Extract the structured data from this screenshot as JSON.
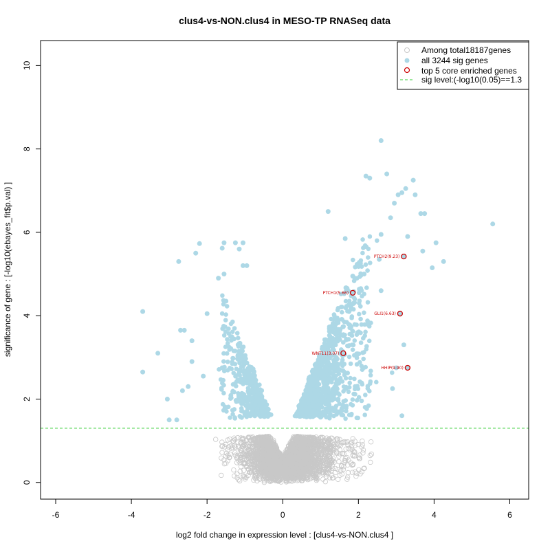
{
  "chart_data": {
    "type": "scatter",
    "title": "clus4-vs-NON.clus4 in MESO-TP RNASeq data",
    "xlabel": "log2 fold change in expression level : [clus4-vs-NON.clus4 ]",
    "ylabel": "significance of gene : [-log10(ebayes_fit$p.val) ]",
    "xlim": [
      -6.4,
      6.5
    ],
    "ylim": [
      -0.4,
      10.6
    ],
    "x_ticks": [
      "-6",
      "-4",
      "-2",
      "0",
      "2",
      "4",
      "6"
    ],
    "y_ticks": [
      "0",
      "2",
      "4",
      "6",
      "8",
      "10"
    ],
    "legend": {
      "position": "top-right",
      "entries": [
        {
          "label": "Among total18187genes",
          "kind": "open-circle",
          "color": "#c8c8c8"
        },
        {
          "label": "all 3244 sig genes",
          "kind": "filled-circle",
          "color": "#add8e6"
        },
        {
          "label": "top 5 core enriched genes",
          "kind": "open-circle",
          "color": "#cc0000"
        },
        {
          "label": "sig level:(-log10(0.05)==1.3",
          "kind": "dashed-line",
          "color": "#33cc33"
        }
      ]
    },
    "sig_threshold": 1.3,
    "colors": {
      "nonsig": "#c8c8c8",
      "sig": "#add8e6",
      "core": "#cc0000",
      "threshold": "#33cc33"
    },
    "outlier_sig_points": [
      [
        -3.7,
        4.1
      ],
      [
        -3.7,
        2.65
      ],
      [
        -3.3,
        3.1
      ],
      [
        -3.05,
        2.0
      ],
      [
        -3.0,
        1.5
      ],
      [
        -2.8,
        1.5
      ],
      [
        -2.75,
        5.3
      ],
      [
        -2.7,
        3.65
      ],
      [
        -2.65,
        2.2
      ],
      [
        -2.6,
        3.65
      ],
      [
        -2.3,
        5.5
      ],
      [
        -2.2,
        5.73
      ],
      [
        -1.7,
        4.9
      ],
      [
        -1.55,
        5.0
      ],
      [
        -1.6,
        2.75
      ],
      [
        -1.5,
        4.35
      ],
      [
        -1.6,
        5.62
      ],
      [
        -1.55,
        5.75
      ],
      [
        -1.25,
        5.75
      ],
      [
        -1.05,
        5.75
      ],
      [
        -1.15,
        5.6
      ],
      [
        -1.05,
        5.2
      ],
      [
        -0.95,
        5.2
      ],
      [
        -2.5,
        2.3
      ],
      [
        -2.4,
        3.4
      ],
      [
        -2.0,
        4.05
      ],
      [
        -2.1,
        2.55
      ],
      [
        -2.4,
        2.9
      ],
      [
        1.65,
        5.85
      ],
      [
        1.7,
        4.65
      ],
      [
        2.3,
        7.3
      ],
      [
        2.6,
        8.2
      ],
      [
        2.75,
        7.4
      ],
      [
        2.95,
        6.7
      ],
      [
        3.05,
        6.9
      ],
      [
        3.15,
        6.95
      ],
      [
        3.25,
        7.05
      ],
      [
        3.45,
        7.25
      ],
      [
        3.5,
        6.9
      ],
      [
        3.65,
        6.45
      ],
      [
        3.75,
        6.45
      ],
      [
        3.95,
        5.15
      ],
      [
        4.05,
        5.75
      ],
      [
        4.25,
        5.3
      ],
      [
        5.55,
        6.2
      ],
      [
        2.85,
        6.35
      ],
      [
        3.3,
        5.9
      ],
      [
        3.7,
        5.55
      ],
      [
        2.6,
        5.95
      ],
      [
        1.75,
        4.1
      ],
      [
        1.85,
        4.95
      ],
      [
        2.15,
        5.0
      ],
      [
        2.55,
        5.35
      ],
      [
        3.15,
        1.6
      ],
      [
        3.2,
        3.3
      ],
      [
        2.2,
        7.35
      ],
      [
        1.2,
        6.5
      ],
      [
        2.6,
        4.6
      ],
      [
        2.9,
        2.25
      ],
      [
        3.0,
        2.75
      ]
    ],
    "core_genes": [
      {
        "gene": "PTCH2",
        "label": "PTCH2(9.23)",
        "x": 3.2,
        "y": 5.42
      },
      {
        "gene": "PTCH1",
        "label": "PTCH1(5.66)",
        "x": 1.85,
        "y": 4.55
      },
      {
        "gene": "GLI1",
        "label": "GLI1(6.63)",
        "x": 3.1,
        "y": 4.05
      },
      {
        "gene": "WNT11",
        "label": "WNT11(3.07)",
        "x": 1.6,
        "y": 3.1
      },
      {
        "gene": "HHIP",
        "label": "HHIP(9.90)",
        "x": 3.3,
        "y": 2.75
      }
    ],
    "density_model": {
      "total_genes": 18187,
      "sig_genes": 3244,
      "seed": 7,
      "positive_skew": 0.62,
      "left_x_scale": 0.5,
      "right_x_scale": 0.72,
      "y_base": 0.55,
      "y_per_abs_x": 2.4,
      "y_jitter": 1.0
    }
  }
}
